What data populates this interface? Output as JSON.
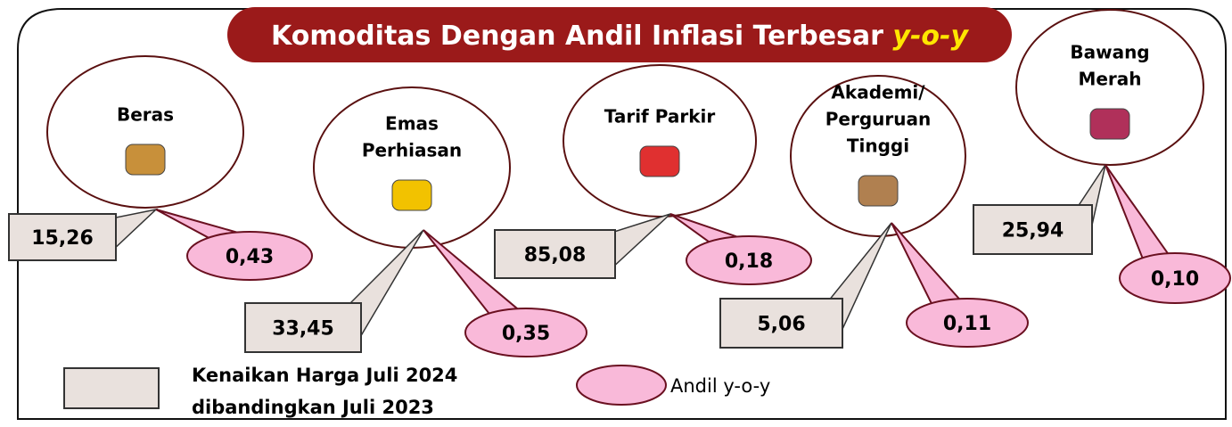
{
  "title": {
    "main": "Komoditas Dengan Andil Inflasi Terbesar",
    "highlight": "y-o-y"
  },
  "items": [
    {
      "name_lines": [
        "Beras"
      ],
      "price_increase": "15,26",
      "contribution": "0,43"
    },
    {
      "name_lines": [
        "Emas",
        "Perhiasan"
      ],
      "price_increase": "33,45",
      "contribution": "0,35"
    },
    {
      "name_lines": [
        "Tarif Parkir"
      ],
      "price_increase": "85,08",
      "contribution": "0,18"
    },
    {
      "name_lines": [
        "Akademi/",
        "Perguruan",
        "Tinggi"
      ],
      "price_increase": "5,06",
      "contribution": "0,11"
    },
    {
      "name_lines": [
        "Bawang",
        "Merah"
      ],
      "price_increase": "25,94",
      "contribution": "0,10"
    }
  ],
  "legend": {
    "price_lines": [
      "Kenaikan Harga Juli 2024",
      "dibandingkan Juli 2023"
    ],
    "contribution": "Andil y-o-y"
  }
}
